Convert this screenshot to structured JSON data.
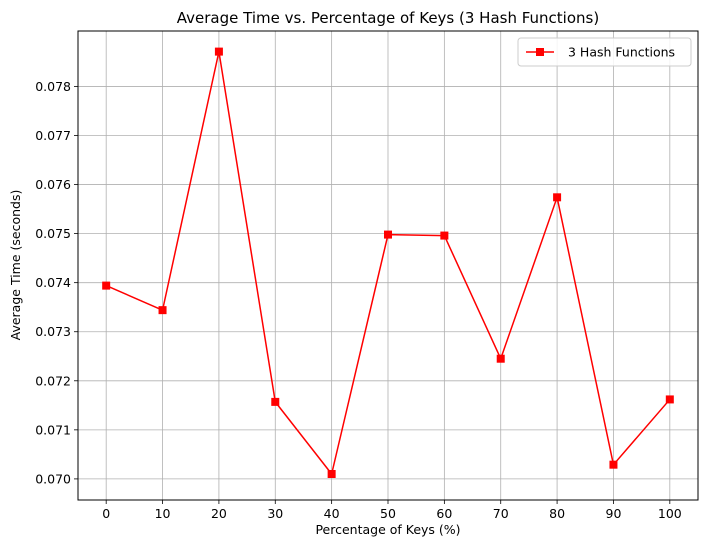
{
  "chart_data": {
    "type": "line",
    "title": "Average Time vs. Percentage of Keys (3 Hash Functions)",
    "xlabel": "Percentage of Keys (%)",
    "ylabel": "Average Time (seconds)",
    "x": [
      0,
      10,
      20,
      30,
      40,
      50,
      60,
      70,
      80,
      90,
      100
    ],
    "xticks": [
      "0",
      "10",
      "20",
      "30",
      "40",
      "50",
      "60",
      "70",
      "80",
      "90",
      "100"
    ],
    "yticks": [
      "0.070",
      "0.071",
      "0.072",
      "0.073",
      "0.074",
      "0.075",
      "0.076",
      "0.077",
      "0.078"
    ],
    "xlim": [
      -5,
      105
    ],
    "ylim": [
      0.06957,
      0.07913
    ],
    "grid": true,
    "legend_position": "top-right",
    "series": [
      {
        "name": "3 Hash Functions",
        "color": "#ff0000",
        "marker": "square",
        "values": [
          0.07394,
          0.07344,
          0.07871,
          0.07157,
          0.0701,
          0.07498,
          0.07496,
          0.07245,
          0.07574,
          0.07029,
          0.07162
        ]
      }
    ]
  }
}
